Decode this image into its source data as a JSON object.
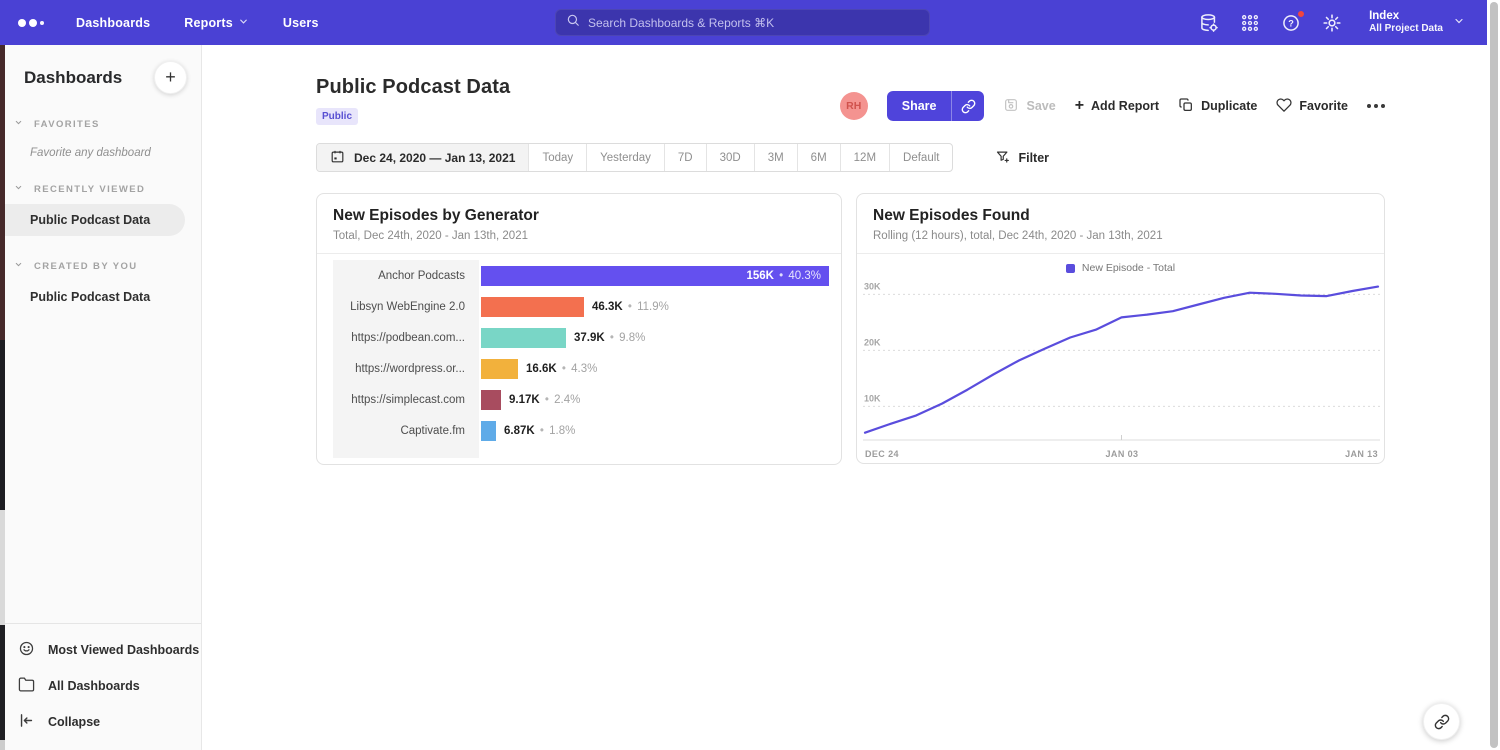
{
  "navbar": {
    "items": [
      {
        "label": "Dashboards",
        "chevron": false
      },
      {
        "label": "Reports",
        "chevron": true
      },
      {
        "label": "Users",
        "chevron": false
      }
    ],
    "search": {
      "placeholder": "Search Dashboards & Reports ⌘K"
    },
    "right_icons": [
      {
        "name": "data-definitions-icon",
        "badge": false
      },
      {
        "name": "apps-grid-icon",
        "badge": false
      },
      {
        "name": "help-icon",
        "badge": true
      },
      {
        "name": "settings-gear-icon",
        "badge": false
      }
    ],
    "project": {
      "name": "Index",
      "subtitle": "All Project Data"
    }
  },
  "sidebar": {
    "title": "Dashboards",
    "add_button": "+",
    "sections": [
      {
        "label": "FAVORITES",
        "items": [
          {
            "label": "Favorite any dashboard",
            "placeholder": true,
            "selected": false
          }
        ]
      },
      {
        "label": "RECENTLY VIEWED",
        "items": [
          {
            "label": "Public Podcast Data",
            "placeholder": false,
            "selected": true
          }
        ]
      },
      {
        "label": "CREATED BY YOU",
        "items": [
          {
            "label": "Public Podcast Data",
            "placeholder": false,
            "selected": false
          }
        ]
      }
    ],
    "footer": [
      {
        "label": "Most Viewed Dashboards",
        "icon": "smiley-icon"
      },
      {
        "label": "All Dashboards",
        "icon": "folder-icon"
      },
      {
        "label": "Collapse",
        "icon": "collapse-icon"
      }
    ]
  },
  "page": {
    "title": "Public Podcast Data",
    "badge": "Public",
    "avatar_initials": "RH",
    "actions": {
      "share": "Share",
      "save": "Save",
      "add_report": "Add Report",
      "duplicate": "Duplicate",
      "favorite": "Favorite"
    }
  },
  "toolbar": {
    "date_range": "Dec 24, 2020 — Jan 13, 2021",
    "presets": [
      "Today",
      "Yesterday",
      "7D",
      "30D",
      "3M",
      "6M",
      "12M",
      "Default"
    ],
    "filter": "Filter"
  },
  "chart_data": [
    {
      "type": "bar",
      "orientation": "horizontal",
      "title": "New Episodes by Generator",
      "subtitle": "Total, Dec 24th, 2020 - Jan 13th, 2021",
      "categories": [
        "Anchor Podcasts",
        "Libsyn WebEngine 2.0",
        "https://podbean.com...",
        "https://wordpress.or...",
        "https://simplecast.com",
        "Captivate.fm"
      ],
      "values": [
        156000,
        46300,
        37900,
        16600,
        9170,
        6870
      ],
      "value_labels": [
        "156K",
        "46.3K",
        "37.9K",
        "16.6K",
        "9.17K",
        "6.87K"
      ],
      "pct_labels": [
        "40.3%",
        "11.9%",
        "9.8%",
        "4.3%",
        "2.4%",
        "1.8%"
      ],
      "colors": [
        "#6450ef",
        "#f3704f",
        "#79d6c6",
        "#f2b13c",
        "#a84c5f",
        "#5fabe8"
      ],
      "separator": "•"
    },
    {
      "type": "line",
      "title": "New Episodes Found",
      "subtitle": "Rolling (12 hours), total, Dec 24th, 2020 - Jan 13th, 2021",
      "legend": [
        {
          "label": "New Episode - Total",
          "color": "#5a4ddd"
        }
      ],
      "x_ticks": [
        "DEC 24",
        "JAN 03",
        "JAN 13"
      ],
      "y_ticks": [
        {
          "label": "10K",
          "value": 10000
        },
        {
          "label": "20K",
          "value": 20000
        },
        {
          "label": "30K",
          "value": 30000
        }
      ],
      "ylim": [
        4000,
        33000
      ],
      "x_range": [
        "Dec 24, 2020",
        "Jan 13, 2021"
      ],
      "values": [
        5300,
        6900,
        8400,
        10500,
        13000,
        15700,
        18200,
        20300,
        22300,
        23700,
        25900,
        26400,
        27000,
        28200,
        29400,
        30300,
        30100,
        29800,
        29700,
        30600,
        31400
      ],
      "line_color": "#5a4ddd",
      "grid": "dotted"
    }
  ]
}
